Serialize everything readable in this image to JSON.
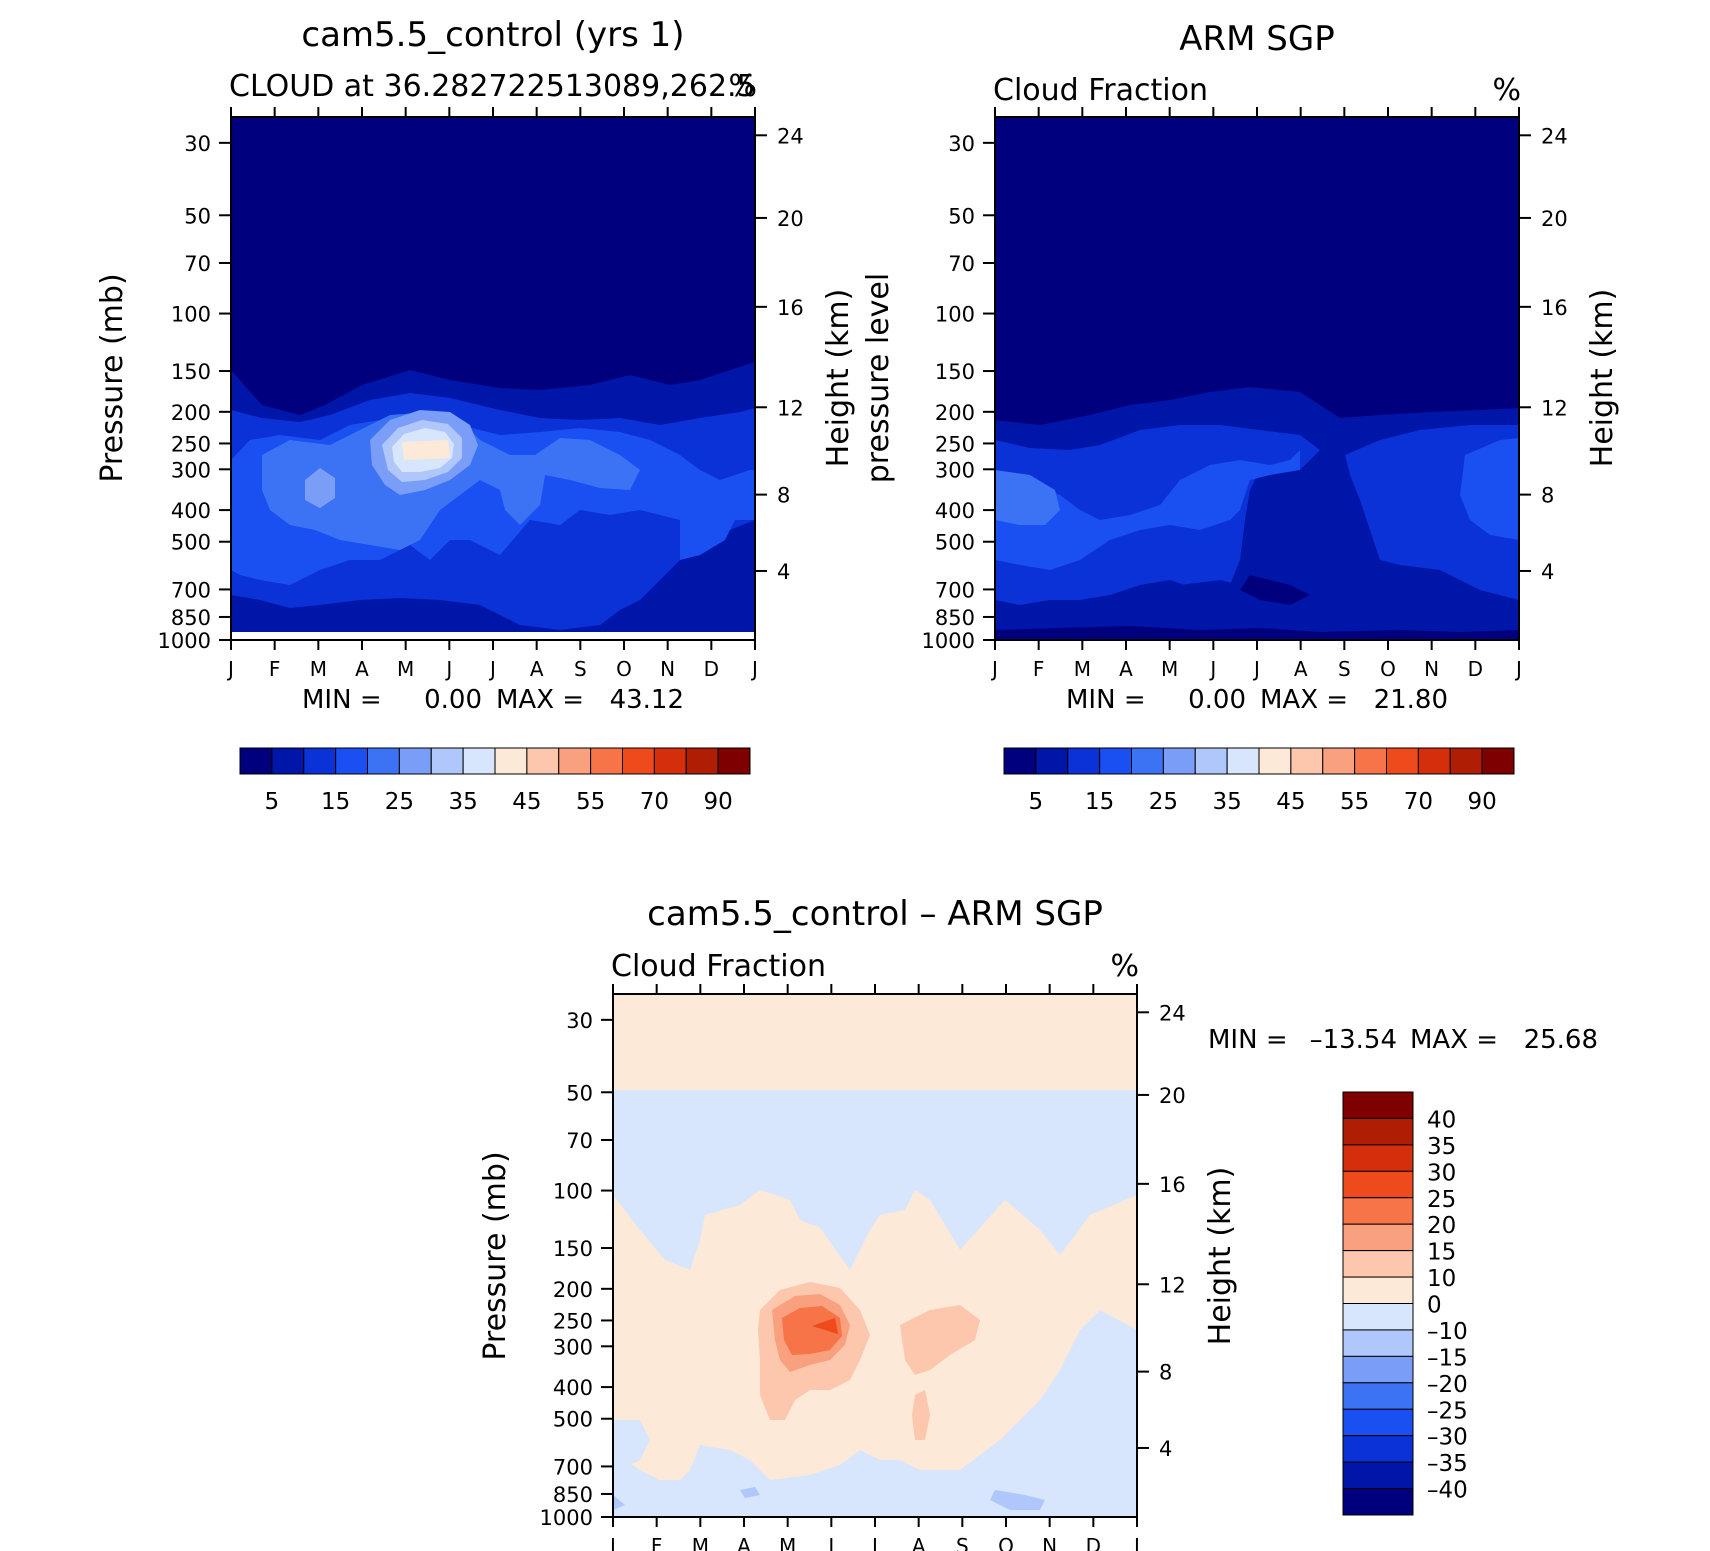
{
  "chart_data": [
    {
      "type": "heatmap",
      "title": "cam5.5_control (yrs 1)",
      "subtitle_left": "CLOUD at 36.282722513089,262.5",
      "subtitle_right": "%",
      "ylabel": "Pressure (mb)",
      "ylabel_right": "Height (km)",
      "x_ticks": [
        "J",
        "F",
        "M",
        "A",
        "M",
        "J",
        "J",
        "A",
        "S",
        "O",
        "N",
        "D",
        "J"
      ],
      "y_ticks": [
        "30",
        "50",
        "70",
        "100",
        "150",
        "200",
        "250",
        "300",
        "400",
        "500",
        "700",
        "850",
        "1000"
      ],
      "y_right_ticks": [
        "24",
        "20",
        "16",
        "12",
        "8",
        "4"
      ],
      "stats": {
        "min_label": "MIN =",
        "min": "0.00",
        "max_label": "MAX =",
        "max": "43.12"
      },
      "colorbar_labels": [
        "5",
        "15",
        "25",
        "35",
        "45",
        "55",
        "70",
        "90"
      ],
      "approx_field": "cloud fraction 0–5% above ~150 mb; 10–25% band 200–500 mb; peak ~43% near 250 mb in May–June"
    },
    {
      "type": "heatmap",
      "title": "ARM SGP",
      "subtitle_left": "Cloud Fraction",
      "subtitle_right": "%",
      "ylabel": "pressure level",
      "ylabel_right": "Height (km)",
      "x_ticks": [
        "J",
        "F",
        "M",
        "A",
        "M",
        "J",
        "J",
        "A",
        "S",
        "O",
        "N",
        "D",
        "J"
      ],
      "y_ticks": [
        "30",
        "50",
        "70",
        "100",
        "150",
        "200",
        "250",
        "300",
        "400",
        "500",
        "700",
        "850",
        "1000"
      ],
      "y_right_ticks": [
        "24",
        "20",
        "16",
        "12",
        "8",
        "4"
      ],
      "stats": {
        "min_label": "MIN =",
        "min": "0.00",
        "max_label": "MAX =",
        "max": "21.80"
      },
      "colorbar_labels": [
        "5",
        "15",
        "25",
        "35",
        "45",
        "55",
        "70",
        "90"
      ],
      "approx_field": "cloud fraction 0–5% above ~200 mb; 10–20% between 200 and 700 mb"
    },
    {
      "type": "heatmap",
      "title": "cam5.5_control – ARM SGP",
      "subtitle_left": "Cloud Fraction",
      "subtitle_right": "%",
      "ylabel": "Pressure (mb)",
      "ylabel_right": "Height (km)",
      "x_ticks": [
        "J",
        "F",
        "M",
        "A",
        "M",
        "J",
        "J",
        "A",
        "S",
        "O",
        "N",
        "D",
        "J"
      ],
      "y_ticks": [
        "30",
        "50",
        "70",
        "100",
        "150",
        "200",
        "250",
        "300",
        "400",
        "500",
        "700",
        "850",
        "1000"
      ],
      "y_right_ticks": [
        "24",
        "20",
        "16",
        "12",
        "8",
        "4"
      ],
      "stats": {
        "min_label": "MIN =",
        "min": "–13.54",
        "max_label": "MAX =",
        "max": "25.68"
      },
      "colorbar_labels": [
        "40",
        "35",
        "30",
        "25",
        "20",
        "15",
        "10",
        "0",
        "–10",
        "–15",
        "–20",
        "–25",
        "–30",
        "–35",
        "–40"
      ],
      "approx_field": "difference 0–10% above 50 mb; –10–0% 50–150 mb; positive 0–25% lobes 150–700 mb with peak ~25% near 250 mb in May–June"
    }
  ],
  "colors": {
    "seq_scale": [
      "#00007e",
      "#0016a8",
      "#0a32d6",
      "#1a4ff2",
      "#3c73f5",
      "#7a9ef8",
      "#b0c7fb",
      "#d7e6fd",
      "#fde9d8",
      "#fcc7ad",
      "#f9a17f",
      "#f67447",
      "#ef4a1c",
      "#d42e0c",
      "#b01d05",
      "#7e0000"
    ],
    "diff_scale": [
      "#7e0000",
      "#b01d05",
      "#d42e0c",
      "#ef4a1c",
      "#f67447",
      "#f9a17f",
      "#fcc7ad",
      "#fde9d8",
      "#d7e6fd",
      "#b0c7fb",
      "#7a9ef8",
      "#3c73f5",
      "#1a4ff2",
      "#0a32d6",
      "#0016a8",
      "#00007e"
    ]
  }
}
